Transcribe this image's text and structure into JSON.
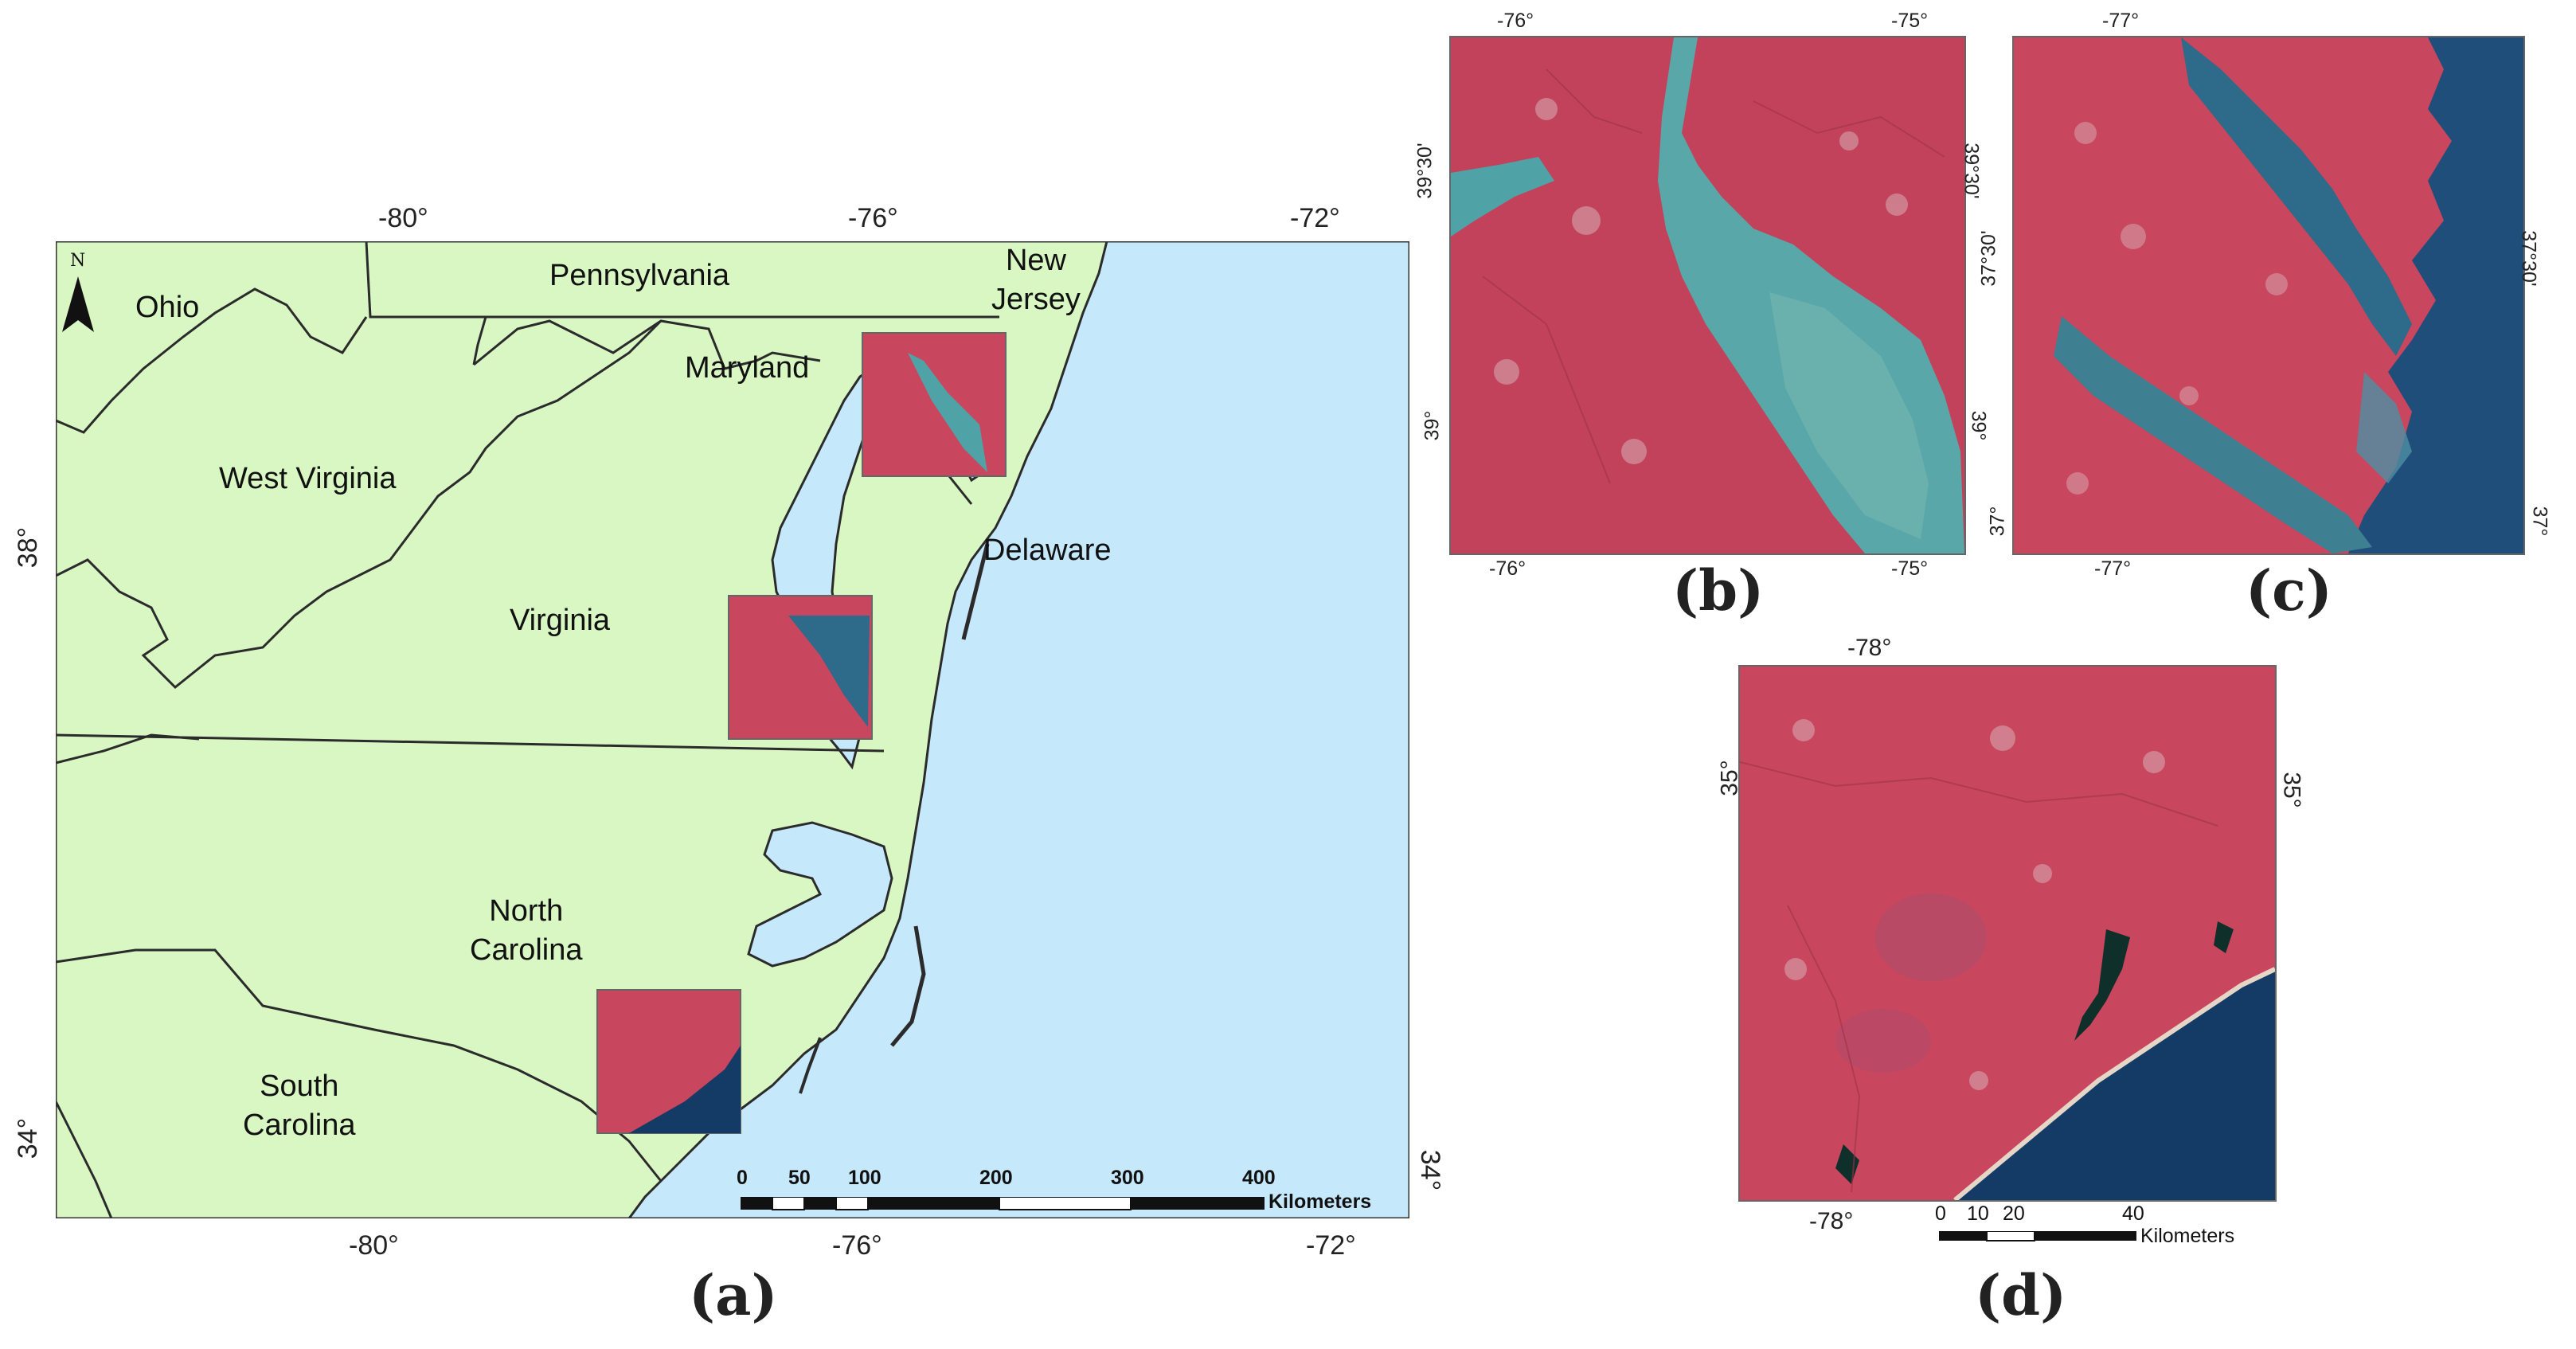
{
  "panel_a": {
    "label": "(a)",
    "top_ticks": [
      "-80°",
      "-76°",
      "-72°"
    ],
    "bottom_ticks": [
      "-80°",
      "-76°",
      "-72°"
    ],
    "left_ticks": [
      "38°",
      "34°"
    ],
    "right_ticks": [
      "34°"
    ],
    "north_label": "N",
    "states": {
      "ohio": "Ohio",
      "pennsylvania": "Pennsylvania",
      "new_jersey": "New\nJersey",
      "maryland": "Maryland",
      "west_virginia": "West Virginia",
      "delaware": "Delaware",
      "virginia": "Virginia",
      "north_carolina": "North\nCarolina",
      "south_carolina": "South\nCarolina"
    },
    "scalebar": {
      "ticks": [
        "0",
        "50",
        "100",
        "200",
        "300",
        "400"
      ],
      "unit": "Kilometers"
    },
    "colors": {
      "land": "#d9f7c3",
      "water": "#c6e8fb",
      "border": "#2b2b2b"
    }
  },
  "panel_b": {
    "label": "(b)",
    "top_ticks": [
      "-76°",
      "-75°"
    ],
    "bottom_ticks": [
      "-76°",
      "-75°"
    ],
    "left_ticks": [
      "39°30'",
      "39°"
    ],
    "right_ticks": [
      "39°30'",
      "39°"
    ]
  },
  "panel_c": {
    "label": "(c)",
    "top_ticks": [
      "-77°"
    ],
    "bottom_ticks": [
      "-77°"
    ],
    "left_ticks": [
      "37°30'",
      "37°"
    ],
    "right_ticks": [
      "37°30'",
      "37°"
    ]
  },
  "panel_d": {
    "label": "(d)",
    "top_ticks": [
      "-78°"
    ],
    "bottom_ticks": [
      "-78°"
    ],
    "left_ticks": [
      "35°"
    ],
    "right_ticks": [
      "35°"
    ],
    "scalebar": {
      "ticks": [
        "0",
        "10",
        "20",
        "40"
      ],
      "unit": "Kilometers"
    }
  },
  "imagery_colors": {
    "vegetation": "#c8465e",
    "water_turbid": "#4fa3a6",
    "water_deep": "#1f4e7a",
    "ocean": "#143a66"
  }
}
